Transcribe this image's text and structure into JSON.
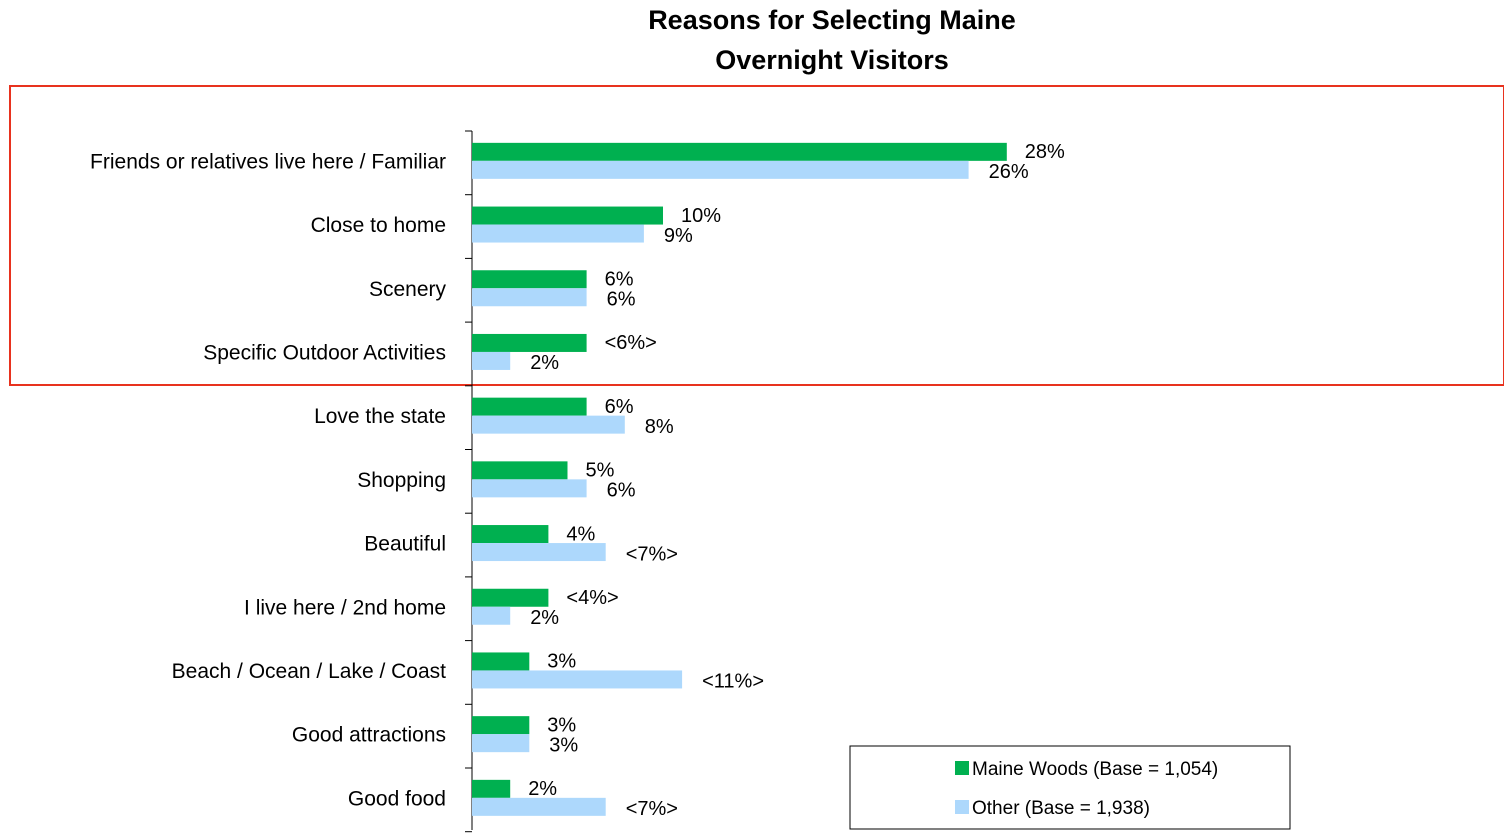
{
  "chart_data": {
    "type": "bar",
    "orientation": "horizontal",
    "title": [
      "Reasons for Selecting Maine",
      "Overnight Visitors"
    ],
    "categories": [
      "Friends or relatives live here / Familiar",
      "Close to home",
      "Scenery",
      "Specific Outdoor Activities",
      "Love the state",
      "Shopping",
      "Beautiful",
      "I live here / 2nd home",
      "Beach / Ocean / Lake / Coast",
      "Good attractions",
      "Good food"
    ],
    "series": [
      {
        "name": "Maine Woods (Base = 1,054)",
        "color": "#00b050",
        "values": [
          28,
          10,
          6,
          6,
          6,
          5,
          4,
          4,
          3,
          3,
          2
        ],
        "value_labels": [
          "28%",
          "10%",
          "6%",
          "<6%>",
          "6%",
          "5%",
          "4%",
          "<4%>",
          "3%",
          "3%",
          "2%"
        ]
      },
      {
        "name": "Other (Base = 1,938)",
        "color": "#add8fc",
        "values": [
          26,
          9,
          6,
          2,
          8,
          6,
          7,
          2,
          11,
          3,
          7
        ],
        "value_labels": [
          "26%",
          "9%",
          "6%",
          "2%",
          "8%",
          "6%",
          "<7%>",
          "2%",
          "<11%>",
          "3%",
          "<7%>"
        ]
      }
    ],
    "legend": "lower right"
  }
}
